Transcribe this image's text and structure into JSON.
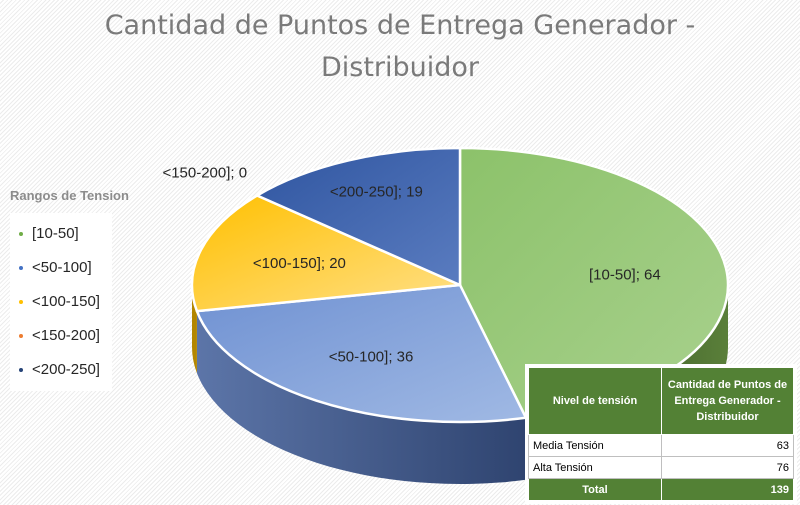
{
  "chart_data": {
    "type": "pie",
    "title": "Cantidad de Puntos de Entrega Generador - Distribuidor",
    "title_lines": [
      "Cantidad de Puntos de Entrega Generador -",
      "Distribuidor"
    ],
    "legend_title": "Rangos de Tension",
    "legend_position": "left",
    "three_d": true,
    "slices": [
      {
        "category": "[10-50]",
        "value": 64,
        "label": "[10-50]; 64",
        "color": "#70AD47",
        "top_color": "#a9d18e",
        "side_color": "#3d5a22"
      },
      {
        "category": "<50-100]",
        "value": 36,
        "label": "<50-100]; 36",
        "color": "#4472C4",
        "top_color": "#8faadc",
        "side_color": "#2e4a7e"
      },
      {
        "category": "<100-150]",
        "value": 20,
        "label": "<100-150]; 20",
        "color": "#FFC000",
        "top_color": "#ffd966",
        "side_color": "#b38600"
      },
      {
        "category": "<150-200]",
        "value": 0,
        "label": "<150-200]; 0",
        "color": "#ED7D31",
        "top_color": "#f4b183",
        "side_color": "#a0501a"
      },
      {
        "category": "<200-250]",
        "value": 19,
        "label": "<200-250]; 19",
        "color": "#264478",
        "top_color": "#4a6fb5",
        "side_color": "#1a2f55"
      }
    ]
  },
  "table": {
    "headers": [
      "Nivel de tensión",
      "Cantidad de Puntos de Entrega Generador - Distribuidor"
    ],
    "rows": [
      {
        "label": "Media Tensión",
        "value": "63"
      },
      {
        "label": "Alta Tensión",
        "value": "76"
      }
    ],
    "total": {
      "label": "Total",
      "value": "139"
    },
    "header_color": "#538135"
  }
}
